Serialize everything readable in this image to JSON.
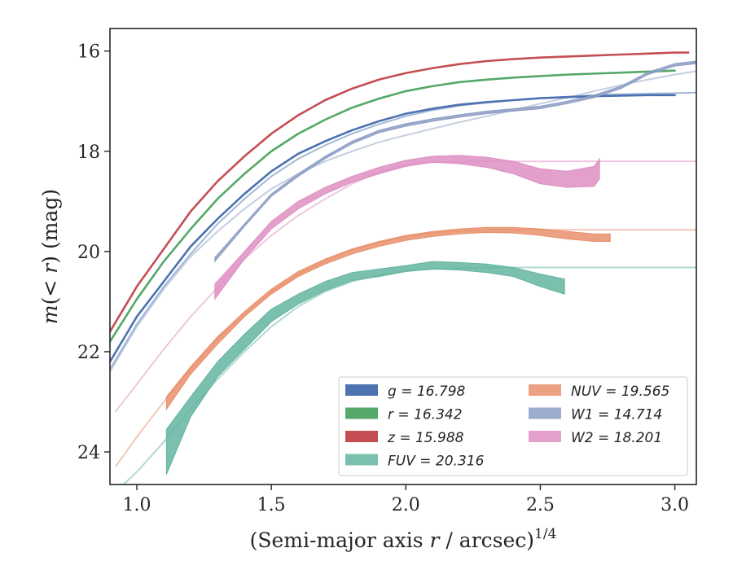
{
  "chart_data": {
    "type": "line",
    "xlabel": "(Semi-major axis r / arcsec)^{1/4}",
    "ylabel": "m(< r) (mag)",
    "xlim": [
      0.9,
      3.08
    ],
    "ylim": [
      24.65,
      15.55
    ],
    "y_inverted": true,
    "x_ticks": [
      "1.0",
      "1.5",
      "2.0",
      "2.5",
      "3.0"
    ],
    "y_ticks": [
      "16",
      "18",
      "20",
      "22",
      "24"
    ],
    "grid": false,
    "legend_position": "lower-right",
    "legend_columns": 2,
    "series": [
      {
        "name": "g = 16.798",
        "color": "#4c72b0",
        "kind": "line",
        "x": [
          0.9,
          1.0,
          1.1,
          1.2,
          1.3,
          1.4,
          1.5,
          1.6,
          1.7,
          1.8,
          1.9,
          2.0,
          2.1,
          2.2,
          2.3,
          2.4,
          2.5,
          2.6,
          2.7,
          2.8,
          2.9,
          3.0
        ],
        "y": [
          22.2,
          21.3,
          20.6,
          19.9,
          19.35,
          18.85,
          18.4,
          18.05,
          17.8,
          17.58,
          17.4,
          17.25,
          17.15,
          17.07,
          17.02,
          16.98,
          16.94,
          16.92,
          16.9,
          16.89,
          16.88,
          16.88
        ],
        "model_x": [
          0.9,
          1.0,
          1.1,
          1.2,
          1.3,
          1.4,
          1.5,
          1.6,
          1.7,
          1.8,
          1.9,
          2.0,
          2.1,
          2.2,
          2.3,
          2.4,
          2.5,
          2.6,
          2.7,
          2.8,
          2.9,
          3.0,
          3.08
        ],
        "model_y": [
          22.35,
          21.45,
          20.7,
          20.05,
          19.45,
          18.95,
          18.5,
          18.15,
          17.88,
          17.65,
          17.46,
          17.3,
          17.18,
          17.09,
          17.03,
          16.98,
          16.94,
          16.91,
          16.88,
          16.86,
          16.85,
          16.84,
          16.83
        ]
      },
      {
        "name": "r = 16.342",
        "color": "#55a868",
        "kind": "line",
        "x": [
          0.9,
          1.0,
          1.1,
          1.2,
          1.3,
          1.4,
          1.5,
          1.6,
          1.7,
          1.8,
          1.9,
          2.0,
          2.1,
          2.2,
          2.3,
          2.4,
          2.5,
          2.6,
          2.7,
          2.8,
          2.9,
          3.0
        ],
        "y": [
          21.8,
          20.95,
          20.2,
          19.55,
          18.95,
          18.45,
          18.0,
          17.65,
          17.37,
          17.13,
          16.95,
          16.8,
          16.7,
          16.62,
          16.57,
          16.53,
          16.5,
          16.47,
          16.45,
          16.43,
          16.41,
          16.39
        ],
        "model_x": [],
        "model_y": []
      },
      {
        "name": "z = 15.988",
        "color": "#c44e52",
        "kind": "line",
        "x": [
          0.9,
          1.0,
          1.1,
          1.2,
          1.3,
          1.4,
          1.5,
          1.6,
          1.7,
          1.8,
          1.9,
          2.0,
          2.1,
          2.2,
          2.3,
          2.4,
          2.5,
          2.6,
          2.7,
          2.8,
          2.9,
          3.0,
          3.05
        ],
        "y": [
          21.6,
          20.7,
          19.95,
          19.2,
          18.6,
          18.1,
          17.65,
          17.28,
          16.98,
          16.75,
          16.57,
          16.44,
          16.34,
          16.26,
          16.2,
          16.16,
          16.13,
          16.11,
          16.09,
          16.07,
          16.05,
          16.03,
          16.03
        ],
        "model_x": [],
        "model_y": []
      },
      {
        "name": "FUV = 20.316",
        "color": "#64b5a0",
        "kind": "band",
        "x": [
          1.11,
          1.2,
          1.3,
          1.4,
          1.5,
          1.6,
          1.7,
          1.8,
          1.9,
          2.0,
          2.1,
          2.2,
          2.3,
          2.4,
          2.5,
          2.59
        ],
        "y_upper": [
          23.55,
          22.9,
          22.2,
          21.65,
          21.15,
          20.85,
          20.6,
          20.42,
          20.35,
          20.28,
          20.2,
          20.22,
          20.25,
          20.32,
          20.45,
          20.55
        ],
        "y_lower": [
          24.45,
          23.3,
          22.5,
          21.95,
          21.4,
          21.05,
          20.78,
          20.58,
          20.5,
          20.4,
          20.35,
          20.37,
          20.42,
          20.5,
          20.7,
          20.85
        ],
        "model_x": [
          0.95,
          1.0,
          1.1,
          1.2,
          1.3,
          1.4,
          1.5,
          1.6,
          1.7,
          1.8,
          1.9,
          2.0,
          2.1,
          2.2,
          2.4,
          2.6,
          2.8,
          3.08
        ],
        "model_y": [
          24.65,
          24.4,
          23.8,
          23.15,
          22.55,
          22.0,
          21.5,
          21.1,
          20.8,
          20.6,
          20.47,
          20.39,
          20.35,
          20.33,
          20.32,
          20.32,
          20.32,
          20.32
        ]
      },
      {
        "name": "NUV = 19.565",
        "color": "#e8906c",
        "kind": "band",
        "x": [
          1.11,
          1.2,
          1.3,
          1.4,
          1.5,
          1.6,
          1.7,
          1.8,
          1.9,
          2.0,
          2.1,
          2.2,
          2.3,
          2.4,
          2.5,
          2.6,
          2.7,
          2.76
        ],
        "y_upper": [
          22.9,
          22.3,
          21.7,
          21.2,
          20.75,
          20.4,
          20.15,
          19.95,
          19.8,
          19.68,
          19.6,
          19.55,
          19.52,
          19.52,
          19.55,
          19.6,
          19.65,
          19.65
        ],
        "y_lower": [
          23.15,
          22.45,
          21.85,
          21.3,
          20.85,
          20.5,
          20.25,
          20.05,
          19.9,
          19.78,
          19.7,
          19.65,
          19.62,
          19.63,
          19.68,
          19.75,
          19.8,
          19.8
        ],
        "model_x": [
          0.92,
          1.0,
          1.1,
          1.2,
          1.3,
          1.4,
          1.5,
          1.6,
          1.7,
          1.8,
          1.9,
          2.0,
          2.1,
          2.2,
          2.3,
          2.5,
          2.8,
          3.08
        ],
        "model_y": [
          24.3,
          23.7,
          23.0,
          22.35,
          21.75,
          21.25,
          20.8,
          20.45,
          20.18,
          19.97,
          19.82,
          19.7,
          19.63,
          19.59,
          19.57,
          19.565,
          19.565,
          19.565
        ]
      },
      {
        "name": "W1 = 14.714",
        "color": "#8c9cc4",
        "kind": "band",
        "x": [
          1.29,
          1.4,
          1.5,
          1.6,
          1.7,
          1.8,
          1.9,
          2.0,
          2.1,
          2.2,
          2.3,
          2.4,
          2.5,
          2.6,
          2.7,
          2.8,
          2.9,
          3.0,
          3.08
        ],
        "y_upper": [
          20.12,
          19.45,
          18.85,
          18.45,
          18.1,
          17.8,
          17.58,
          17.45,
          17.35,
          17.27,
          17.2,
          17.15,
          17.1,
          17.0,
          16.88,
          16.7,
          16.42,
          16.25,
          16.2
        ],
        "y_lower": [
          20.2,
          19.5,
          18.9,
          18.5,
          18.15,
          17.85,
          17.63,
          17.5,
          17.4,
          17.32,
          17.25,
          17.2,
          17.15,
          17.05,
          16.93,
          16.75,
          16.47,
          16.3,
          16.25
        ],
        "model_x": [
          0.9,
          1.0,
          1.1,
          1.2,
          1.3,
          1.4,
          1.5,
          1.6,
          1.7,
          1.8,
          1.9,
          2.0,
          2.1,
          2.2,
          2.3,
          2.4,
          2.5,
          2.6,
          2.7,
          2.8,
          2.9,
          3.0,
          3.08
        ],
        "model_y": [
          22.4,
          21.5,
          20.75,
          20.1,
          19.6,
          19.15,
          18.75,
          18.45,
          18.2,
          18.0,
          17.82,
          17.68,
          17.55,
          17.42,
          17.3,
          17.18,
          17.05,
          16.93,
          16.8,
          16.68,
          16.57,
          16.47,
          16.4
        ]
      },
      {
        "name": "W2 = 18.201",
        "color": "#dd8fc2",
        "kind": "band",
        "x": [
          1.29,
          1.4,
          1.5,
          1.6,
          1.7,
          1.8,
          1.9,
          2.0,
          2.1,
          2.2,
          2.3,
          2.4,
          2.5,
          2.6,
          2.7,
          2.72
        ],
        "y_upper": [
          20.65,
          20.0,
          19.4,
          19.0,
          18.72,
          18.5,
          18.32,
          18.18,
          18.1,
          18.08,
          18.12,
          18.2,
          18.35,
          18.4,
          18.3,
          18.15
        ],
        "y_lower": [
          20.95,
          20.15,
          19.55,
          19.15,
          18.85,
          18.62,
          18.45,
          18.3,
          18.22,
          18.25,
          18.32,
          18.45,
          18.65,
          18.72,
          18.7,
          18.55
        ],
        "model_x": [
          0.92,
          1.0,
          1.1,
          1.2,
          1.3,
          1.4,
          1.5,
          1.6,
          1.7,
          1.8,
          1.9,
          2.0,
          2.1,
          2.3,
          2.6,
          3.08
        ],
        "model_y": [
          23.2,
          22.65,
          21.95,
          21.3,
          20.72,
          20.15,
          19.68,
          19.28,
          18.95,
          18.65,
          18.42,
          18.28,
          18.22,
          18.205,
          18.201,
          18.201
        ]
      }
    ]
  }
}
